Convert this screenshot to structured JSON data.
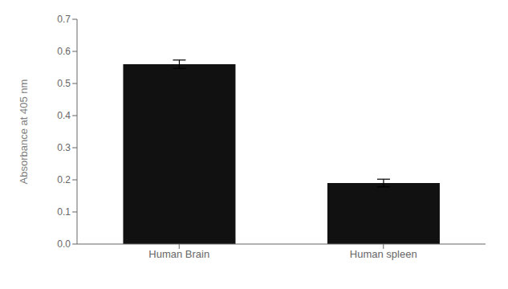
{
  "chart_data": {
    "type": "bar",
    "categories": [
      "Human Brain",
      "Human spleen"
    ],
    "values": [
      0.56,
      0.19
    ],
    "errors": [
      0.013,
      0.012
    ],
    "color": "#111111",
    "ylabel": "Absorbance at 405 nm",
    "ylim": [
      0.0,
      0.7
    ],
    "yticks": [
      {
        "value": 0.0,
        "label": "0.0"
      },
      0.1,
      0.2,
      0.3,
      0.4,
      0.5,
      0.6,
      0.7
    ],
    "grid": false
  }
}
